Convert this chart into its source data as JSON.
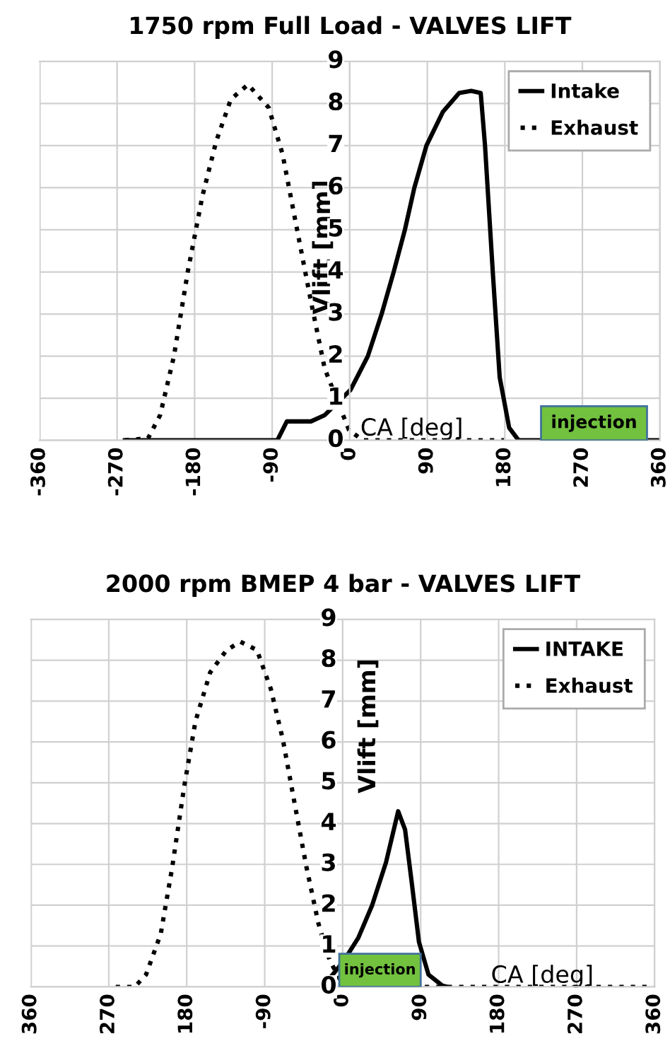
{
  "chart_data": [
    {
      "type": "line",
      "title": "1750 rpm Full Load - VALVES LIFT",
      "xlabel": "CA [deg]",
      "ylabel": "Vlift [mm]",
      "series": [
        {
          "name": "Intake",
          "color": "#000000",
          "line_style": "solid",
          "x": [
            -261,
            -84,
            -73,
            -45,
            -29,
            1,
            21,
            37,
            51,
            64,
            75,
            89,
            108,
            127,
            141,
            152,
            157,
            166,
            174,
            185,
            196,
            360
          ],
          "values": [
            0,
            0,
            0.45,
            0.45,
            0.6,
            1.2,
            2,
            3,
            4,
            5,
            6,
            7,
            7.8,
            8.25,
            8.3,
            8.25,
            7,
            4,
            1.5,
            0.3,
            0,
            0
          ]
        },
        {
          "name": "Exhaust",
          "color": "#000000",
          "line_style": "dotted",
          "x": [
            -261,
            -234,
            -220,
            -204,
            -188,
            -171,
            -155,
            -138,
            -118,
            -94,
            -78,
            -62,
            -45,
            -29,
            -1,
            15,
            179
          ],
          "values": [
            0,
            0.05,
            0.6,
            2,
            4,
            5.8,
            7.1,
            8.1,
            8.45,
            7.9,
            6.8,
            5.1,
            3.3,
            1.7,
            0.25,
            0,
            0
          ]
        }
      ],
      "bands": [
        {
          "axis": "x",
          "from": 222,
          "to": 345,
          "label": "injection",
          "color": "#72c13f"
        }
      ],
      "xlim": [
        -360,
        360
      ],
      "xticks": [
        -360,
        -270,
        -180,
        -90,
        0,
        90,
        180,
        270,
        360
      ],
      "ylim": [
        0,
        9
      ],
      "yticks": [
        0,
        1,
        2,
        3,
        4,
        5,
        6,
        7,
        8,
        9
      ],
      "grid": true,
      "legend": "top right"
    },
    {
      "type": "line",
      "title": "2000 rpm BMEP 4 bar - VALVES LIFT",
      "xlabel": "CA [deg]",
      "ylabel": "Vlift [mm]",
      "series": [
        {
          "name": "INTAKE",
          "color": "#000000",
          "line_style": "solid",
          "x": [
            -23,
            1,
            18,
            34,
            50,
            64,
            72,
            80,
            88,
            99,
            115,
            121
          ],
          "values": [
            0,
            0.63,
            1.2,
            2,
            3.05,
            4.3,
            3.85,
            2.5,
            1.1,
            0.3,
            0.03,
            0
          ]
        },
        {
          "name": "Exhaust",
          "color": "#000000",
          "line_style": "dotted",
          "x": [
            -262,
            -240,
            -227,
            -210,
            -197,
            -183,
            -170,
            -153,
            -134,
            -118,
            -99,
            -83,
            -69,
            -56,
            -42,
            -28,
            -15,
            -1,
            18,
            360
          ],
          "values": [
            0,
            0,
            0.3,
            1.3,
            2.9,
            4.9,
            6.5,
            7.7,
            8.25,
            8.45,
            8.25,
            7.3,
            6.05,
            4.55,
            2.95,
            1.55,
            0.65,
            0.1,
            0,
            0
          ]
        }
      ],
      "bands": [
        {
          "axis": "x",
          "from": -4,
          "to": 90,
          "label": "injection",
          "color": "#72c13f"
        }
      ],
      "xlim": [
        -360,
        360
      ],
      "xticks": [
        {
          "value": -360,
          "label": "360"
        },
        {
          "value": -270,
          "label": "270"
        },
        {
          "value": -180,
          "label": "180"
        },
        -90,
        0,
        90,
        180,
        270,
        360
      ],
      "ylim": [
        0,
        9
      ],
      "yticks": [
        0,
        1,
        2,
        3,
        4,
        5,
        6,
        7,
        8,
        9
      ],
      "grid": true,
      "legend": "top right"
    }
  ]
}
